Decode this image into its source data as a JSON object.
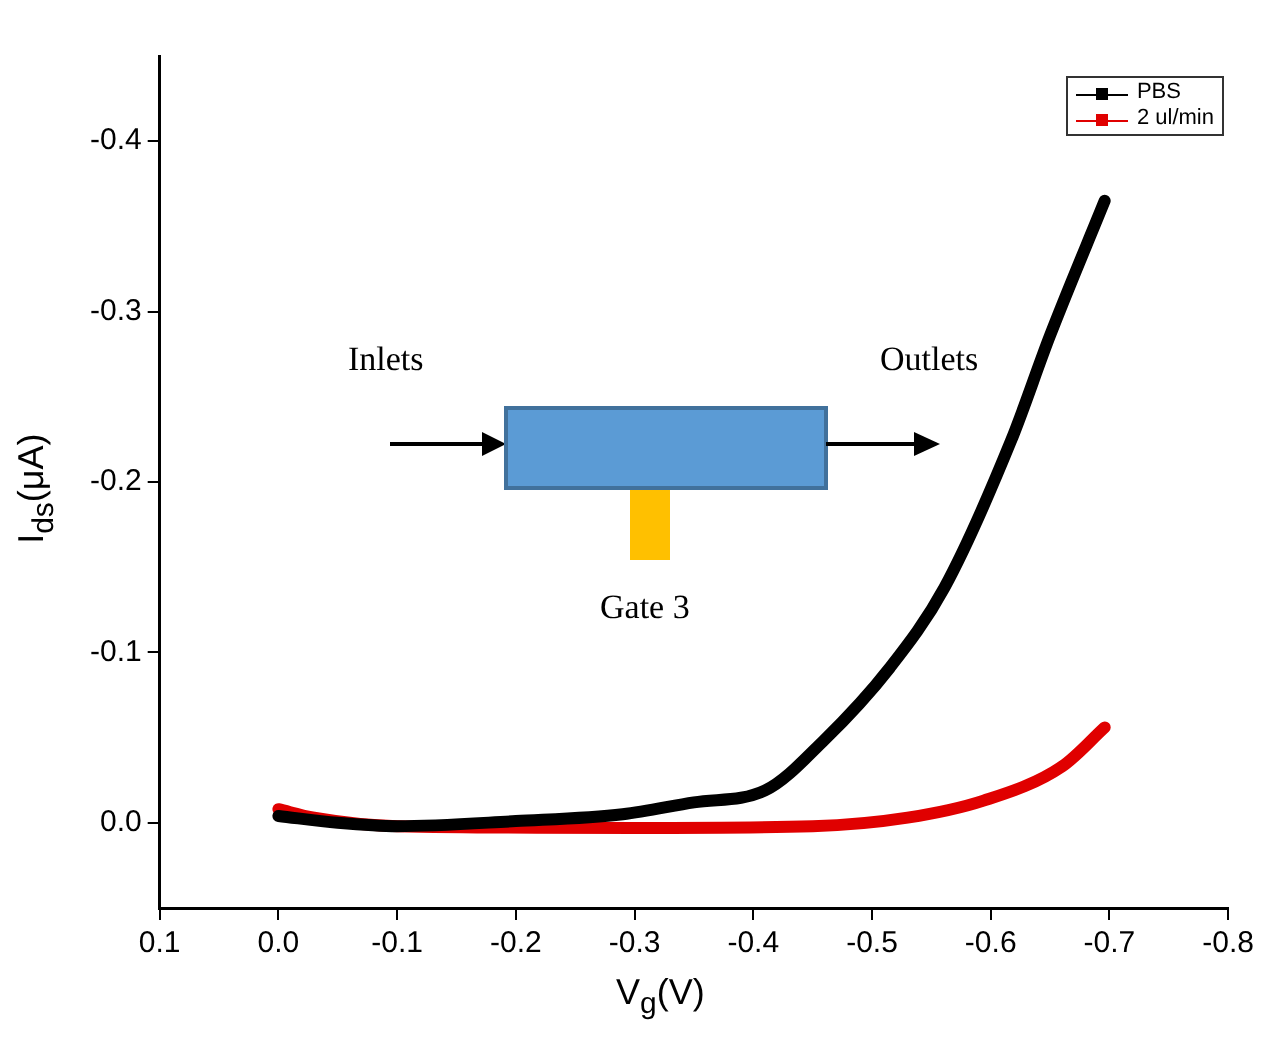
{
  "chart_data": {
    "type": "line",
    "xlabel": "V$_{g}$(V)",
    "ylabel": "I$_{ds}$(μA)",
    "xlim": [
      0.1,
      -0.8
    ],
    "xticks": [
      0.1,
      {
        "value": 0,
        "label": "0.0"
      },
      -0.1,
      -0.2,
      -0.3,
      -0.4,
      -0.5,
      -0.6,
      -0.7,
      -0.8
    ],
    "ylim": [
      0.05,
      -0.45
    ],
    "yticks": [
      {
        "value": 0,
        "label": "0.0"
      },
      -0.1,
      -0.2,
      -0.3,
      -0.4
    ],
    "grid": false,
    "legend": "top right",
    "series": [
      {
        "name": "PBS",
        "color": "#000000",
        "x": [
          0,
          -0.05,
          -0.1,
          -0.2,
          -0.29,
          -0.35,
          -0.41,
          -0.459,
          -0.515,
          -0.561,
          -0.617,
          -0.65,
          -0.696
        ],
        "values": [
          -0.004,
          0.0,
          0.002,
          -0.001,
          -0.005,
          -0.012,
          -0.019,
          -0.048,
          -0.091,
          -0.138,
          -0.224,
          -0.286,
          -0.365
        ]
      },
      {
        "name": "2 ul/min",
        "color": "#e00000",
        "x": [
          0,
          -0.03,
          -0.1,
          -0.3,
          -0.45,
          -0.53,
          -0.594,
          -0.66,
          -0.696
        ],
        "values": [
          -0.008,
          -0.003,
          0.002,
          0.003,
          0.002,
          -0.003,
          -0.013,
          -0.033,
          -0.056
        ]
      }
    ],
    "annotations": [
      "Inlets",
      "Outlets",
      "Gate 3"
    ]
  }
}
